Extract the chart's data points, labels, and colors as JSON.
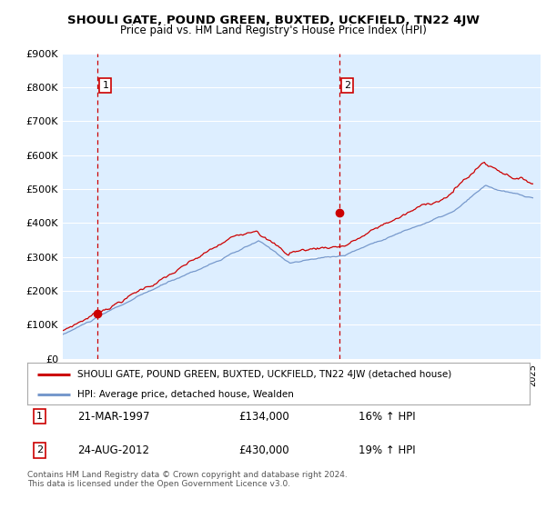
{
  "title": "SHOULI GATE, POUND GREEN, BUXTED, UCKFIELD, TN22 4JW",
  "subtitle": "Price paid vs. HM Land Registry's House Price Index (HPI)",
  "yticks": [
    0,
    100000,
    200000,
    300000,
    400000,
    500000,
    600000,
    700000,
    800000,
    900000
  ],
  "ytick_labels": [
    "£0",
    "£100K",
    "£200K",
    "£300K",
    "£400K",
    "£500K",
    "£600K",
    "£700K",
    "£800K",
    "£900K"
  ],
  "xmin": 1995.0,
  "xmax": 2025.5,
  "ymin": 0,
  "ymax": 900000,
  "sale1_x": 1997.22,
  "sale1_y": 134000,
  "sale1_label": "1",
  "sale1_date": "21-MAR-1997",
  "sale1_price": "£134,000",
  "sale1_hpi": "16% ↑ HPI",
  "sale2_x": 2012.65,
  "sale2_y": 430000,
  "sale2_label": "2",
  "sale2_date": "24-AUG-2012",
  "sale2_price": "£430,000",
  "sale2_hpi": "19% ↑ HPI",
  "line_color_red": "#cc0000",
  "line_color_blue": "#7799cc",
  "dashed_vline_color": "#cc0000",
  "marker_color": "#cc0000",
  "bg_color": "#ddeeff",
  "grid_color": "#ffffff",
  "legend1_label": "SHOULI GATE, POUND GREEN, BUXTED, UCKFIELD, TN22 4JW (detached house)",
  "legend2_label": "HPI: Average price, detached house, Wealden",
  "footer": "Contains HM Land Registry data © Crown copyright and database right 2024.\nThis data is licensed under the Open Government Licence v3.0."
}
